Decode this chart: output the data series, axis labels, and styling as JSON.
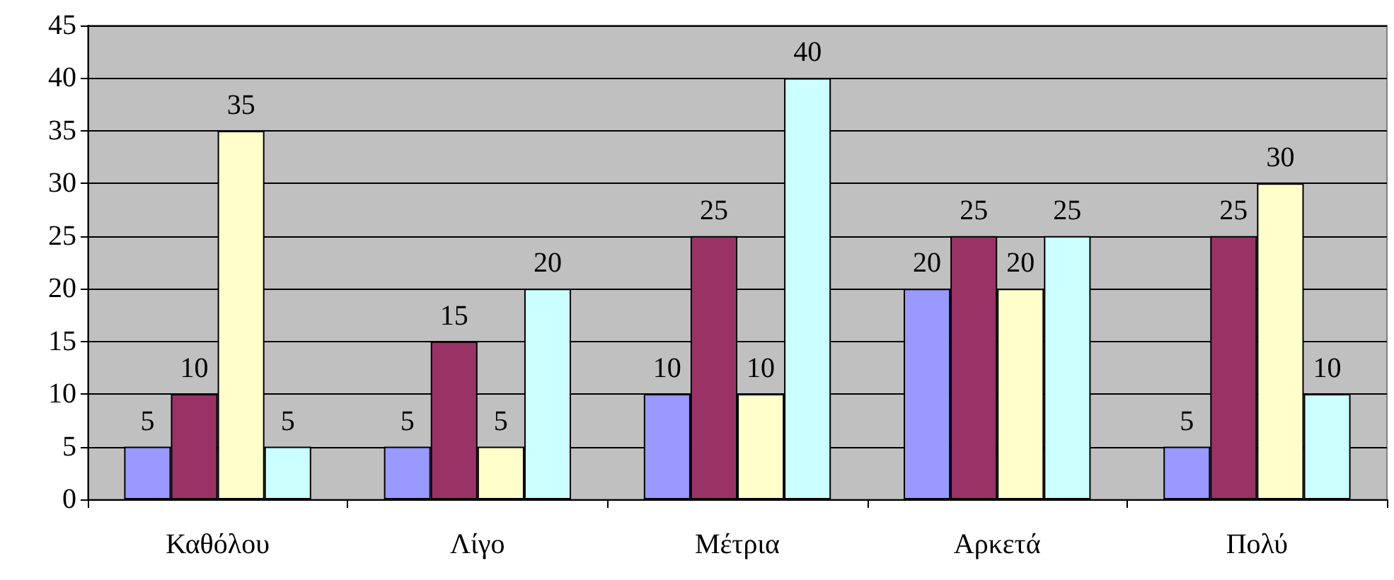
{
  "chart_data": {
    "type": "bar",
    "categories": [
      "Καθόλου",
      "Λίγο",
      "Μέτρια",
      "Αρκετά",
      "Πολύ"
    ],
    "series": [
      {
        "color": "#9999ff",
        "values": [
          5,
          5,
          10,
          20,
          5
        ]
      },
      {
        "color": "#993366",
        "values": [
          10,
          15,
          25,
          25,
          25
        ]
      },
      {
        "color": "#ffffcc",
        "values": [
          35,
          5,
          10,
          20,
          30
        ]
      },
      {
        "color": "#ccffff",
        "values": [
          5,
          20,
          40,
          25,
          10
        ]
      }
    ],
    "ylim": [
      0,
      45
    ],
    "yticks": [
      0,
      5,
      10,
      15,
      20,
      25,
      30,
      35,
      40,
      45
    ],
    "grid": "y",
    "data_labels": true
  }
}
